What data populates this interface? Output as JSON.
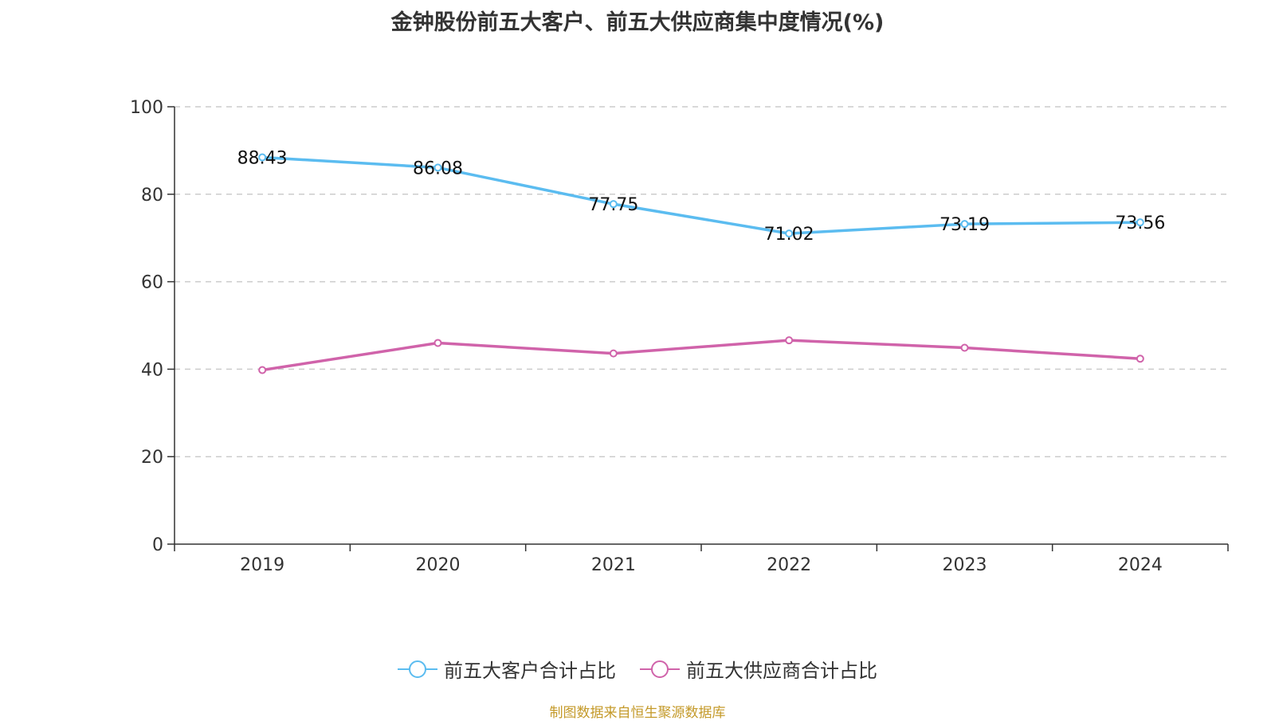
{
  "chart_data": {
    "type": "line",
    "title": "金钟股份前五大客户、前五大供应商集中度情况(%)",
    "categories": [
      "2019",
      "2020",
      "2021",
      "2022",
      "2023",
      "2024"
    ],
    "series": [
      {
        "name": "前五大客户合计占比",
        "color": "#5bbcf0",
        "values": [
          88.43,
          86.08,
          77.75,
          71.02,
          73.19,
          73.56
        ],
        "labels": [
          "88.43",
          "86.08",
          "77.75",
          "71.02",
          "73.19",
          "73.56"
        ]
      },
      {
        "name": "前五大供应商合计占比",
        "color": "#d063aa",
        "values": [
          39.8,
          46.0,
          43.6,
          46.6,
          44.9,
          42.4
        ]
      }
    ],
    "ylim": [
      0,
      100
    ],
    "yticks": [
      "0",
      "20",
      "40",
      "60",
      "80",
      "100"
    ],
    "grid": true,
    "legend": "bottom-center"
  },
  "source": "制图数据来自恒生聚源数据库"
}
